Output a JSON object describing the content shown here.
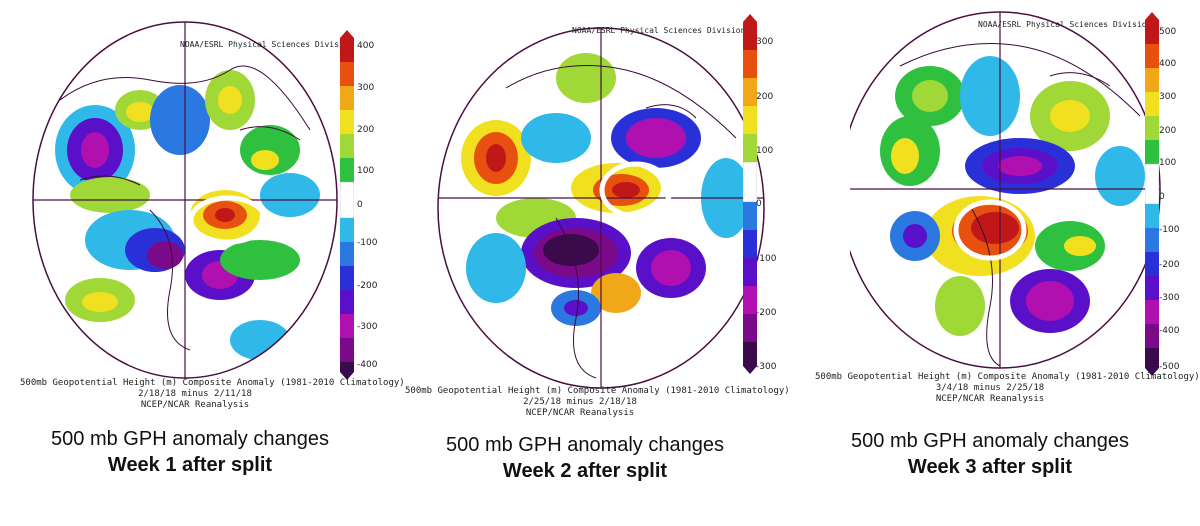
{
  "panels": [
    {
      "id": "week1",
      "source": "NOAA/ESRL Physical Sciences Division",
      "footer_title": "500mb Geopotential Height (m) Composite Anomaly (1981-2010 Climatology)",
      "footer_dates": "2/18/18 minus 2/11/18",
      "footer_reanalysis": "NCEP/NCAR Reanalysis",
      "caption_line1": "500 mb GPH anomaly changes",
      "caption_line2": "Week 1 after split",
      "colorbar_ticks": [
        "400",
        "300",
        "200",
        "100",
        "0",
        "-100",
        "-200",
        "-300",
        "-400"
      ]
    },
    {
      "id": "week2",
      "source": "NOAA/ESRL Physical Sciences Division",
      "footer_title": "500mb Geopotential Height (m) Composite Anomaly (1981-2010 Climatology)",
      "footer_dates": "2/25/18 minus 2/18/18",
      "footer_reanalysis": "NCEP/NCAR Reanalysis",
      "caption_line1": "500 mb GPH anomaly changes",
      "caption_line2": "Week 2 after split",
      "colorbar_ticks": [
        "300",
        "200",
        "100",
        "0",
        "-100",
        "-200",
        "-300"
      ]
    },
    {
      "id": "week3",
      "source": "NOAA/ESRL Physical Sciences Division",
      "footer_title": "500mb Geopotential Height (m) Composite Anomaly (1981-2010 Climatology)",
      "footer_dates": "3/4/18 minus 2/25/18",
      "footer_reanalysis": "NCEP/NCAR Reanalysis",
      "caption_line1": "500 mb GPH anomaly changes",
      "caption_line2": "Week 3 after split",
      "colorbar_ticks": [
        "500",
        "400",
        "300",
        "200",
        "100",
        "0",
        "-100",
        "-200",
        "-300",
        "-400",
        "-500"
      ]
    }
  ],
  "colors": {
    "colorbar": [
      "#3a0a4a",
      "#7a0a8a",
      "#b010b0",
      "#5a10c8",
      "#2a30d8",
      "#2a78e0",
      "#30b8e8",
      "#ffffff",
      "#30c040",
      "#a0d838",
      "#f0e020",
      "#f0a818",
      "#e85010",
      "#c01818"
    ],
    "highlight_ring": "#ffffff",
    "map_outline": "#4a1040"
  }
}
